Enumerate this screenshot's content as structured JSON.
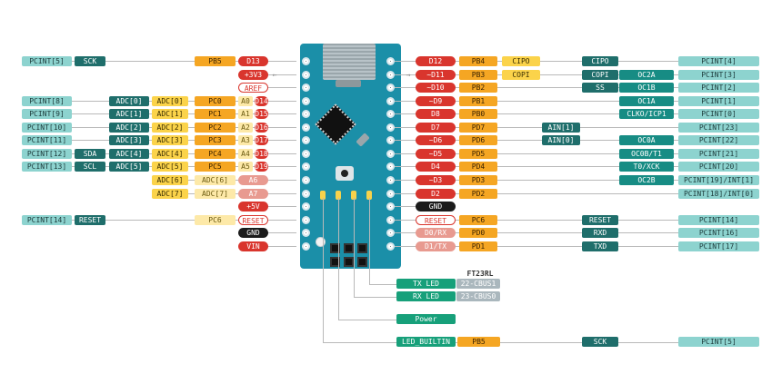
{
  "left_rows": [
    [
      "PCINT[5]",
      "SCK",
      "",
      "",
      "PB5",
      "D13",
      ""
    ],
    [
      "",
      "",
      "",
      "",
      "",
      "+3V3",
      ""
    ],
    [
      "",
      "",
      "",
      "",
      "",
      "AREF",
      ""
    ],
    [
      "PCINT[8]",
      "",
      "ADC[0]",
      "ADC[0]",
      "PC0",
      "A0",
      "D14"
    ],
    [
      "PCINT[9]",
      "",
      "ADC[1]",
      "ADC[1]",
      "PC1",
      "A1",
      "D15"
    ],
    [
      "PCINT[10]",
      "",
      "ADC[2]",
      "ADC[2]",
      "PC2",
      "A2",
      "D16"
    ],
    [
      "PCINT[11]",
      "",
      "ADC[3]",
      "ADC[3]",
      "PC3",
      "A3",
      "D17"
    ],
    [
      "PCINT[12]",
      "SDA",
      "ADC[4]",
      "ADC[4]",
      "PC4",
      "A4",
      "D18"
    ],
    [
      "PCINT[13]",
      "SCL",
      "ADC[5]",
      "ADC[5]",
      "PC5",
      "A5",
      "D19"
    ],
    [
      "",
      "",
      "",
      "ADC[6]",
      "ADC[6]",
      "A6",
      ""
    ],
    [
      "",
      "",
      "",
      "ADC[7]",
      "ADC[7]",
      "A7",
      ""
    ],
    [
      "",
      "",
      "",
      "",
      "",
      "+5V",
      ""
    ],
    [
      "PCINT[14]",
      "RESET",
      "",
      "",
      "PC6",
      "RESET",
      ""
    ],
    [
      "",
      "",
      "",
      "",
      "",
      "GND",
      ""
    ],
    [
      "",
      "",
      "",
      "",
      "",
      "VIN",
      ""
    ]
  ],
  "right_rows": [
    [
      "D12",
      "PB4",
      "CIPO",
      "",
      "CIPO",
      "",
      "PCINT[4]"
    ],
    [
      "~D11",
      "PB3",
      "COPI",
      "",
      "COPI",
      "OC2A",
      "PCINT[3]"
    ],
    [
      "~D10",
      "PB2",
      "",
      "",
      "SS",
      "OC1B",
      "PCINT[2]"
    ],
    [
      "~D9",
      "PB1",
      "",
      "",
      "",
      "OC1A",
      "PCINT[1]"
    ],
    [
      "D8",
      "PB0",
      "",
      "",
      "",
      "CLKO/ICP1",
      "PCINT[0]"
    ],
    [
      "D7",
      "PD7",
      "",
      "AIN[1]",
      "",
      "",
      "PCINT[23]"
    ],
    [
      "~D6",
      "PD6",
      "",
      "AIN[0]",
      "",
      "OC0A",
      "PCINT[22]"
    ],
    [
      "~D5",
      "PD5",
      "",
      "",
      "",
      "OC0B/T1",
      "PCINT[21]"
    ],
    [
      "D4",
      "PD4",
      "",
      "",
      "",
      "T0/XCK",
      "PCINT[20]"
    ],
    [
      "~D3",
      "PD3",
      "",
      "",
      "",
      "OC2B",
      "PCINT[19]/INT[1]"
    ],
    [
      "D2",
      "PD2",
      "",
      "",
      "",
      "",
      "PCINT[18]/INT[0]"
    ],
    [
      "GND",
      "",
      "",
      "",
      "",
      "",
      ""
    ],
    [
      "RESET",
      "PC6",
      "",
      "",
      "RESET",
      "",
      "PCINT[14]"
    ],
    [
      "D0/RX",
      "PD0",
      "",
      "",
      "RXD",
      "",
      "PCINT[16]"
    ],
    [
      "D1/TX",
      "PD1",
      "",
      "",
      "TXD",
      "",
      "PCINT[17]"
    ]
  ],
  "bottom": {
    "ft23rl": "FT23RL",
    "tx_led": "TX LED",
    "tx_cbus": "22-CBUS1",
    "rx_led": "RX LED",
    "rx_cbus": "23-CBUS0",
    "power": "Power",
    "led_builtin": "LED_BUILTIN",
    "led_port": "PB5",
    "led_sck": "SCK",
    "led_pcint": "PCINT[5]"
  },
  "colors": {
    "pcint": "#8dd3cf",
    "comm": "#1f6e6b",
    "port": "#f5a623",
    "adc": "#fbd34a",
    "digital": "#d9352d",
    "ground": "#1b1b1b",
    "board": "#1b8fa8",
    "led": "#17a07a"
  }
}
